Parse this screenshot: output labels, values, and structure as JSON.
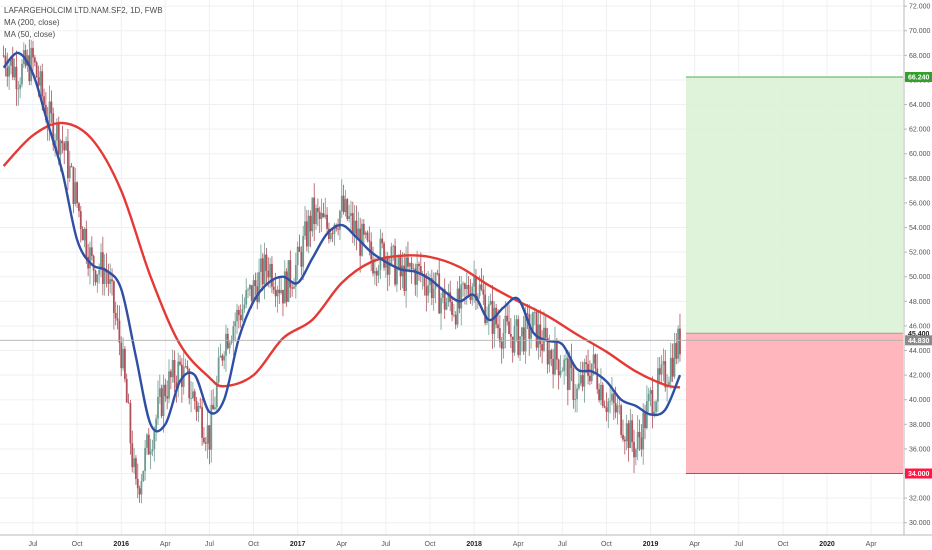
{
  "legend": {
    "symbol": "LAFARGEHOLCIM LTD.NAM.SF2, 1D, FWB",
    "ma1": "MA (200, close)",
    "ma2": "MA (50, close)"
  },
  "colors": {
    "ma200": "#e53935",
    "ma50": "#2e4fa3",
    "candle_up": "#6f9a90",
    "candle_down": "#b0505a",
    "profit_zone": "#d9f1d3",
    "loss_zone": "#ffb3b9",
    "target_tag": "#33a02c",
    "stop_tag": "#ff1744",
    "current_tag": "#8a8a8a"
  },
  "chart_data": {
    "type": "candlestick",
    "title": "LAFARGEHOLCIM LTD.NAM.SF2, 1D, FWB",
    "y_ticks": [
      "72.000",
      "70.000",
      "68.000",
      "66.000",
      "64.000",
      "62.000",
      "60.000",
      "58.000",
      "56.000",
      "54.000",
      "52.000",
      "50.000",
      "48.000",
      "46.000",
      "44.000",
      "42.000",
      "40.000",
      "38.000",
      "36.000",
      "34.000",
      "32.000",
      "30.000"
    ],
    "ylim": [
      29,
      72.5
    ],
    "x_ticks": [
      "Jul",
      "Oct",
      "2016",
      "Apr",
      "Jul",
      "Oct",
      "2017",
      "Apr",
      "Jul",
      "Oct",
      "2018",
      "Apr",
      "Jul",
      "Oct",
      "2019",
      "Apr",
      "Jul",
      "Oct",
      "2020",
      "Apr"
    ],
    "x_tick_values": [
      "2015-07",
      "2015-10",
      "2016-01",
      "2016-04",
      "2016-07",
      "2016-10",
      "2017-01",
      "2017-04",
      "2017-07",
      "2017-10",
      "2018-01",
      "2018-04",
      "2018-07",
      "2018-10",
      "2019-01",
      "2019-04",
      "2019-07",
      "2019-10",
      "2020-01",
      "2020-04"
    ],
    "bold_ticks": [
      "2016",
      "2017",
      "2018",
      "2019",
      "2020"
    ],
    "price_path": [
      [
        "2015-05",
        68.0
      ],
      [
        "2015-06",
        66.5
      ],
      [
        "2015-07",
        67.5
      ],
      [
        "2015-08",
        63.0
      ],
      [
        "2015-09",
        61.0
      ],
      [
        "2015-10",
        56.0
      ],
      [
        "2015-11",
        51.0
      ],
      [
        "2015-12",
        50.5
      ],
      [
        "2016-01",
        44.0
      ],
      [
        "2016-02",
        32.5
      ],
      [
        "2016-03",
        37.0
      ],
      [
        "2016-04",
        41.0
      ],
      [
        "2016-05",
        42.5
      ],
      [
        "2016-06",
        40.0
      ],
      [
        "2016-07",
        37.0
      ],
      [
        "2016-08",
        45.0
      ],
      [
        "2016-09",
        47.0
      ],
      [
        "2016-10",
        49.0
      ],
      [
        "2016-11",
        51.0
      ],
      [
        "2016-12",
        49.0
      ],
      [
        "2017-01",
        51.0
      ],
      [
        "2017-02",
        55.0
      ],
      [
        "2017-03",
        54.0
      ],
      [
        "2017-04",
        55.5
      ],
      [
        "2017-05",
        53.5
      ],
      [
        "2017-06",
        51.5
      ],
      [
        "2017-07",
        52.0
      ],
      [
        "2017-08",
        50.0
      ],
      [
        "2017-09",
        50.5
      ],
      [
        "2017-10",
        49.5
      ],
      [
        "2017-11",
        48.0
      ],
      [
        "2017-12",
        47.5
      ],
      [
        "2018-01",
        50.0
      ],
      [
        "2018-02",
        47.0
      ],
      [
        "2018-03",
        45.5
      ],
      [
        "2018-04",
        45.0
      ],
      [
        "2018-05",
        46.0
      ],
      [
        "2018-06",
        44.0
      ],
      [
        "2018-07",
        43.0
      ],
      [
        "2018-08",
        40.5
      ],
      [
        "2018-09",
        43.0
      ],
      [
        "2018-10",
        40.0
      ],
      [
        "2018-11",
        38.5
      ],
      [
        "2018-12",
        36.0
      ],
      [
        "2019-01",
        40.0
      ],
      [
        "2019-02",
        42.0
      ],
      [
        "2019-03",
        44.8
      ]
    ],
    "series": [
      {
        "name": "MA (200, close)",
        "points": [
          [
            "2015-05",
            59.0
          ],
          [
            "2015-07",
            61.5
          ],
          [
            "2015-09",
            62.5
          ],
          [
            "2015-11",
            61.2
          ],
          [
            "2016-01",
            57.0
          ],
          [
            "2016-03",
            50.0
          ],
          [
            "2016-05",
            44.5
          ],
          [
            "2016-07",
            41.8
          ],
          [
            "2016-08",
            41.1
          ],
          [
            "2016-10",
            42.0
          ],
          [
            "2016-12",
            45.0
          ],
          [
            "2017-02",
            46.5
          ],
          [
            "2017-04",
            49.5
          ],
          [
            "2017-06",
            51.2
          ],
          [
            "2017-08",
            51.7
          ],
          [
            "2017-10",
            51.6
          ],
          [
            "2017-12",
            50.8
          ],
          [
            "2018-02",
            49.3
          ],
          [
            "2018-04",
            48.0
          ],
          [
            "2018-06",
            46.8
          ],
          [
            "2018-08",
            45.3
          ],
          [
            "2018-10",
            43.9
          ],
          [
            "2018-12",
            42.3
          ],
          [
            "2019-02",
            41.2
          ],
          [
            "2019-03",
            41.0
          ]
        ]
      },
      {
        "name": "MA (50, close)",
        "points": [
          [
            "2015-05",
            67.0
          ],
          [
            "2015-06",
            68.2
          ],
          [
            "2015-07",
            66.5
          ],
          [
            "2015-08",
            62.5
          ],
          [
            "2015-09",
            58.5
          ],
          [
            "2015-10",
            53.0
          ],
          [
            "2015-11",
            51.0
          ],
          [
            "2015-12",
            50.5
          ],
          [
            "2016-01",
            49.0
          ],
          [
            "2016-02",
            43.5
          ],
          [
            "2016-03",
            38.0
          ],
          [
            "2016-04",
            38.0
          ],
          [
            "2016-05",
            41.5
          ],
          [
            "2016-06",
            42.0
          ],
          [
            "2016-07",
            39.0
          ],
          [
            "2016-08",
            40.0
          ],
          [
            "2016-09",
            45.0
          ],
          [
            "2016-10",
            48.0
          ],
          [
            "2016-11",
            49.5
          ],
          [
            "2016-12",
            50.0
          ],
          [
            "2017-01",
            49.5
          ],
          [
            "2017-02",
            51.5
          ],
          [
            "2017-03",
            53.5
          ],
          [
            "2017-04",
            54.2
          ],
          [
            "2017-05",
            53.2
          ],
          [
            "2017-06",
            52.0
          ],
          [
            "2017-07",
            51.2
          ],
          [
            "2017-08",
            50.6
          ],
          [
            "2017-09",
            50.4
          ],
          [
            "2017-10",
            49.8
          ],
          [
            "2017-11",
            48.8
          ],
          [
            "2017-12",
            48.0
          ],
          [
            "2018-01",
            48.5
          ],
          [
            "2018-02",
            46.5
          ],
          [
            "2018-03",
            47.5
          ],
          [
            "2018-04",
            48.2
          ],
          [
            "2018-05",
            45.5
          ],
          [
            "2018-06",
            44.8
          ],
          [
            "2018-07",
            44.5
          ],
          [
            "2018-08",
            42.5
          ],
          [
            "2018-09",
            42.3
          ],
          [
            "2018-10",
            41.5
          ],
          [
            "2018-11",
            40.0
          ],
          [
            "2018-12",
            39.5
          ],
          [
            "2019-01",
            38.8
          ],
          [
            "2019-02",
            39.2
          ],
          [
            "2019-03",
            42.0
          ]
        ]
      }
    ],
    "position": {
      "entry": 45.4,
      "target": 66.24,
      "stop": 34.0,
      "start": "2019-03",
      "end": "2020-07"
    },
    "price_tags": [
      {
        "label": "66.240",
        "value": 66.24,
        "kind": "target"
      },
      {
        "label": "45.400",
        "value": 45.4,
        "kind": "plain"
      },
      {
        "label": "44.830",
        "value": 44.83,
        "kind": "current"
      },
      {
        "label": "34.000",
        "value": 34.0,
        "kind": "stop"
      }
    ],
    "current_price": 44.83,
    "grid": true
  }
}
